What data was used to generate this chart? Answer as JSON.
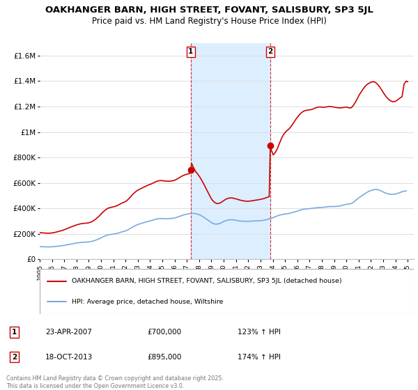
{
  "title": "OAKHANGER BARN, HIGH STREET, FOVANT, SALISBURY, SP3 5JL",
  "subtitle": "Price paid vs. HM Land Registry's House Price Index (HPI)",
  "title_fontsize": 9.5,
  "subtitle_fontsize": 8.5,
  "background_color": "#ffffff",
  "grid_color": "#dddddd",
  "hpi_line_color": "#7aaadd",
  "price_line_color": "#cc0000",
  "shaded_region_color": "#ddeeff",
  "sale1_date_num": 2007.31,
  "sale1_price": 700000,
  "sale2_date_num": 2013.8,
  "sale2_price": 895000,
  "ylim_min": 0,
  "ylim_max": 1700000,
  "xlim_min": 1995,
  "xlim_max": 2025.5,
  "yticks": [
    0,
    200000,
    400000,
    600000,
    800000,
    1000000,
    1200000,
    1400000,
    1600000
  ],
  "ytick_labels": [
    "£0",
    "£200K",
    "£400K",
    "£600K",
    "£800K",
    "£1M",
    "£1.2M",
    "£1.4M",
    "£1.6M"
  ],
  "xticks": [
    1995,
    1996,
    1997,
    1998,
    1999,
    2000,
    2001,
    2002,
    2003,
    2004,
    2005,
    2006,
    2007,
    2008,
    2009,
    2010,
    2011,
    2012,
    2013,
    2014,
    2015,
    2016,
    2017,
    2018,
    2019,
    2020,
    2021,
    2022,
    2023,
    2024,
    2025
  ],
  "legend_label_price": "OAKHANGER BARN, HIGH STREET, FOVANT, SALISBURY, SP3 5JL (detached house)",
  "legend_label_hpi": "HPI: Average price, detached house, Wiltshire",
  "footer": "Contains HM Land Registry data © Crown copyright and database right 2025.\nThis data is licensed under the Open Government Licence v3.0.",
  "hpi_data": [
    [
      1995.04,
      100000
    ],
    [
      1995.21,
      99000
    ],
    [
      1995.38,
      98500
    ],
    [
      1995.54,
      98000
    ],
    [
      1995.71,
      97500
    ],
    [
      1995.88,
      98000
    ],
    [
      1996.04,
      99000
    ],
    [
      1996.21,
      100500
    ],
    [
      1996.38,
      102000
    ],
    [
      1996.54,
      104000
    ],
    [
      1996.71,
      106000
    ],
    [
      1996.88,
      108000
    ],
    [
      1997.04,
      111000
    ],
    [
      1997.21,
      114000
    ],
    [
      1997.38,
      117000
    ],
    [
      1997.54,
      120000
    ],
    [
      1997.71,
      123000
    ],
    [
      1997.88,
      126000
    ],
    [
      1998.04,
      129000
    ],
    [
      1998.21,
      131000
    ],
    [
      1998.38,
      133000
    ],
    [
      1998.54,
      134000
    ],
    [
      1998.71,
      135000
    ],
    [
      1998.88,
      136000
    ],
    [
      1999.04,
      138000
    ],
    [
      1999.21,
      141000
    ],
    [
      1999.38,
      145000
    ],
    [
      1999.54,
      150000
    ],
    [
      1999.71,
      156000
    ],
    [
      1999.88,
      163000
    ],
    [
      2000.04,
      171000
    ],
    [
      2000.21,
      179000
    ],
    [
      2000.38,
      186000
    ],
    [
      2000.54,
      191000
    ],
    [
      2000.71,
      195000
    ],
    [
      2000.88,
      197000
    ],
    [
      2001.04,
      199000
    ],
    [
      2001.21,
      202000
    ],
    [
      2001.38,
      206000
    ],
    [
      2001.54,
      211000
    ],
    [
      2001.71,
      216000
    ],
    [
      2001.88,
      220000
    ],
    [
      2002.04,
      225000
    ],
    [
      2002.21,
      233000
    ],
    [
      2002.38,
      242000
    ],
    [
      2002.54,
      252000
    ],
    [
      2002.71,
      261000
    ],
    [
      2002.88,
      269000
    ],
    [
      2003.04,
      275000
    ],
    [
      2003.21,
      280000
    ],
    [
      2003.38,
      285000
    ],
    [
      2003.54,
      290000
    ],
    [
      2003.71,
      295000
    ],
    [
      2003.88,
      299000
    ],
    [
      2004.04,
      303000
    ],
    [
      2004.21,
      308000
    ],
    [
      2004.38,
      313000
    ],
    [
      2004.54,
      317000
    ],
    [
      2004.71,
      320000
    ],
    [
      2004.88,
      321000
    ],
    [
      2005.04,
      320000
    ],
    [
      2005.21,
      319000
    ],
    [
      2005.38,
      319000
    ],
    [
      2005.54,
      320000
    ],
    [
      2005.71,
      321000
    ],
    [
      2005.88,
      323000
    ],
    [
      2006.04,
      326000
    ],
    [
      2006.21,
      331000
    ],
    [
      2006.38,
      337000
    ],
    [
      2006.54,
      343000
    ],
    [
      2006.71,
      348000
    ],
    [
      2006.88,
      352000
    ],
    [
      2007.04,
      356000
    ],
    [
      2007.21,
      359000
    ],
    [
      2007.38,
      361000
    ],
    [
      2007.54,
      361000
    ],
    [
      2007.71,
      359000
    ],
    [
      2007.88,
      355000
    ],
    [
      2008.04,
      349000
    ],
    [
      2008.21,
      341000
    ],
    [
      2008.38,
      331000
    ],
    [
      2008.54,
      320000
    ],
    [
      2008.71,
      308000
    ],
    [
      2008.88,
      296000
    ],
    [
      2009.04,
      286000
    ],
    [
      2009.21,
      279000
    ],
    [
      2009.38,
      276000
    ],
    [
      2009.54,
      278000
    ],
    [
      2009.71,
      283000
    ],
    [
      2009.88,
      291000
    ],
    [
      2010.04,
      299000
    ],
    [
      2010.21,
      305000
    ],
    [
      2010.38,
      309000
    ],
    [
      2010.54,
      311000
    ],
    [
      2010.71,
      311000
    ],
    [
      2010.88,
      309000
    ],
    [
      2011.04,
      306000
    ],
    [
      2011.21,
      303000
    ],
    [
      2011.38,
      301000
    ],
    [
      2011.54,
      300000
    ],
    [
      2011.71,
      299000
    ],
    [
      2011.88,
      299000
    ],
    [
      2012.04,
      299000
    ],
    [
      2012.21,
      300000
    ],
    [
      2012.38,
      301000
    ],
    [
      2012.54,
      302000
    ],
    [
      2012.71,
      302000
    ],
    [
      2012.88,
      303000
    ],
    [
      2013.04,
      304000
    ],
    [
      2013.21,
      306000
    ],
    [
      2013.38,
      309000
    ],
    [
      2013.54,
      313000
    ],
    [
      2013.71,
      317000
    ],
    [
      2013.88,
      322000
    ],
    [
      2014.04,
      328000
    ],
    [
      2014.21,
      335000
    ],
    [
      2014.38,
      342000
    ],
    [
      2014.54,
      347000
    ],
    [
      2014.71,
      351000
    ],
    [
      2014.88,
      354000
    ],
    [
      2015.04,
      356000
    ],
    [
      2015.21,
      359000
    ],
    [
      2015.38,
      362000
    ],
    [
      2015.54,
      366000
    ],
    [
      2015.71,
      370000
    ],
    [
      2015.88,
      375000
    ],
    [
      2016.04,
      380000
    ],
    [
      2016.21,
      386000
    ],
    [
      2016.38,
      391000
    ],
    [
      2016.54,
      394000
    ],
    [
      2016.71,
      396000
    ],
    [
      2016.88,
      397000
    ],
    [
      2017.04,
      399000
    ],
    [
      2017.21,
      401000
    ],
    [
      2017.38,
      403000
    ],
    [
      2017.54,
      405000
    ],
    [
      2017.71,
      406000
    ],
    [
      2017.88,
      407000
    ],
    [
      2018.04,
      408000
    ],
    [
      2018.21,
      410000
    ],
    [
      2018.38,
      412000
    ],
    [
      2018.54,
      414000
    ],
    [
      2018.71,
      415000
    ],
    [
      2018.88,
      415000
    ],
    [
      2019.04,
      415000
    ],
    [
      2019.21,
      416000
    ],
    [
      2019.38,
      418000
    ],
    [
      2019.54,
      421000
    ],
    [
      2019.71,
      425000
    ],
    [
      2019.88,
      430000
    ],
    [
      2020.04,
      433000
    ],
    [
      2020.21,
      434000
    ],
    [
      2020.38,
      438000
    ],
    [
      2020.54,
      446000
    ],
    [
      2020.71,
      459000
    ],
    [
      2020.88,
      473000
    ],
    [
      2021.04,
      485000
    ],
    [
      2021.21,
      496000
    ],
    [
      2021.38,
      507000
    ],
    [
      2021.54,
      518000
    ],
    [
      2021.71,
      528000
    ],
    [
      2021.88,
      536000
    ],
    [
      2022.04,
      542000
    ],
    [
      2022.21,
      547000
    ],
    [
      2022.38,
      549000
    ],
    [
      2022.54,
      548000
    ],
    [
      2022.71,
      543000
    ],
    [
      2022.88,
      535000
    ],
    [
      2023.04,
      527000
    ],
    [
      2023.21,
      520000
    ],
    [
      2023.38,
      515000
    ],
    [
      2023.54,
      512000
    ],
    [
      2023.71,
      511000
    ],
    [
      2023.88,
      512000
    ],
    [
      2024.04,
      514000
    ],
    [
      2024.21,
      519000
    ],
    [
      2024.38,
      525000
    ],
    [
      2024.54,
      531000
    ],
    [
      2024.71,
      535000
    ],
    [
      2024.88,
      538000
    ]
  ],
  "price_data": [
    [
      1995.04,
      210000
    ],
    [
      1995.21,
      208000
    ],
    [
      1995.38,
      207000
    ],
    [
      1995.54,
      206000
    ],
    [
      1995.71,
      205000
    ],
    [
      1995.88,
      206000
    ],
    [
      1996.04,
      208000
    ],
    [
      1996.21,
      211000
    ],
    [
      1996.38,
      215000
    ],
    [
      1996.54,
      219000
    ],
    [
      1996.71,
      224000
    ],
    [
      1996.88,
      228000
    ],
    [
      1997.04,
      234000
    ],
    [
      1997.21,
      241000
    ],
    [
      1997.38,
      248000
    ],
    [
      1997.54,
      254000
    ],
    [
      1997.71,
      260000
    ],
    [
      1997.88,
      266000
    ],
    [
      1998.04,
      272000
    ],
    [
      1998.21,
      276000
    ],
    [
      1998.38,
      280000
    ],
    [
      1998.54,
      282000
    ],
    [
      1998.71,
      284000
    ],
    [
      1998.88,
      285000
    ],
    [
      1999.04,
      288000
    ],
    [
      1999.21,
      294000
    ],
    [
      1999.38,
      303000
    ],
    [
      1999.54,
      314000
    ],
    [
      1999.71,
      328000
    ],
    [
      1999.88,
      343000
    ],
    [
      2000.04,
      360000
    ],
    [
      2000.21,
      376000
    ],
    [
      2000.38,
      390000
    ],
    [
      2000.54,
      400000
    ],
    [
      2000.71,
      406000
    ],
    [
      2000.88,
      410000
    ],
    [
      2001.04,
      413000
    ],
    [
      2001.21,
      418000
    ],
    [
      2001.38,
      425000
    ],
    [
      2001.54,
      434000
    ],
    [
      2001.71,
      442000
    ],
    [
      2001.88,
      449000
    ],
    [
      2002.04,
      456000
    ],
    [
      2002.21,
      471000
    ],
    [
      2002.38,
      488000
    ],
    [
      2002.54,
      506000
    ],
    [
      2002.71,
      522000
    ],
    [
      2002.88,
      536000
    ],
    [
      2003.04,
      546000
    ],
    [
      2003.21,
      554000
    ],
    [
      2003.38,
      562000
    ],
    [
      2003.54,
      570000
    ],
    [
      2003.71,
      578000
    ],
    [
      2003.88,
      585000
    ],
    [
      2004.04,
      590000
    ],
    [
      2004.21,
      598000
    ],
    [
      2004.38,
      606000
    ],
    [
      2004.54,
      613000
    ],
    [
      2004.71,
      617000
    ],
    [
      2004.88,
      619000
    ],
    [
      2005.04,
      617000
    ],
    [
      2005.21,
      615000
    ],
    [
      2005.38,
      614000
    ],
    [
      2005.54,
      614000
    ],
    [
      2005.71,
      615000
    ],
    [
      2005.88,
      618000
    ],
    [
      2006.04,
      623000
    ],
    [
      2006.21,
      631000
    ],
    [
      2006.38,
      641000
    ],
    [
      2006.54,
      651000
    ],
    [
      2006.71,
      659000
    ],
    [
      2006.88,
      665000
    ],
    [
      2007.04,
      670000
    ],
    [
      2007.21,
      673000
    ],
    [
      2007.31,
      700000
    ],
    [
      2007.38,
      755000
    ],
    [
      2007.54,
      720000
    ],
    [
      2007.71,
      690000
    ],
    [
      2007.88,
      670000
    ],
    [
      2008.04,
      648000
    ],
    [
      2008.21,
      621000
    ],
    [
      2008.38,
      591000
    ],
    [
      2008.54,
      560000
    ],
    [
      2008.71,
      528000
    ],
    [
      2008.88,
      496000
    ],
    [
      2009.04,
      469000
    ],
    [
      2009.21,
      451000
    ],
    [
      2009.38,
      440000
    ],
    [
      2009.54,
      438000
    ],
    [
      2009.71,
      443000
    ],
    [
      2009.88,
      453000
    ],
    [
      2010.04,
      464000
    ],
    [
      2010.21,
      474000
    ],
    [
      2010.38,
      480000
    ],
    [
      2010.54,
      483000
    ],
    [
      2010.71,
      482000
    ],
    [
      2010.88,
      478000
    ],
    [
      2011.04,
      474000
    ],
    [
      2011.21,
      469000
    ],
    [
      2011.38,
      464000
    ],
    [
      2011.54,
      461000
    ],
    [
      2011.71,
      458000
    ],
    [
      2011.88,
      456000
    ],
    [
      2012.04,
      457000
    ],
    [
      2012.21,
      459000
    ],
    [
      2012.38,
      461000
    ],
    [
      2012.54,
      464000
    ],
    [
      2012.71,
      466000
    ],
    [
      2012.88,
      469000
    ],
    [
      2013.04,
      472000
    ],
    [
      2013.21,
      476000
    ],
    [
      2013.38,
      481000
    ],
    [
      2013.54,
      487000
    ],
    [
      2013.71,
      493000
    ],
    [
      2013.8,
      895000
    ],
    [
      2013.88,
      860000
    ],
    [
      2014.04,
      820000
    ],
    [
      2014.21,
      840000
    ],
    [
      2014.38,
      870000
    ],
    [
      2014.54,
      910000
    ],
    [
      2014.71,
      950000
    ],
    [
      2014.88,
      980000
    ],
    [
      2015.04,
      1000000
    ],
    [
      2015.21,
      1015000
    ],
    [
      2015.38,
      1030000
    ],
    [
      2015.54,
      1050000
    ],
    [
      2015.71,
      1075000
    ],
    [
      2015.88,
      1100000
    ],
    [
      2016.04,
      1120000
    ],
    [
      2016.21,
      1140000
    ],
    [
      2016.38,
      1155000
    ],
    [
      2016.54,
      1165000
    ],
    [
      2016.71,
      1170000
    ],
    [
      2016.88,
      1173000
    ],
    [
      2017.04,
      1175000
    ],
    [
      2017.21,
      1178000
    ],
    [
      2017.38,
      1185000
    ],
    [
      2017.54,
      1192000
    ],
    [
      2017.71,
      1196000
    ],
    [
      2017.88,
      1197000
    ],
    [
      2018.04,
      1195000
    ],
    [
      2018.21,
      1195000
    ],
    [
      2018.38,
      1197000
    ],
    [
      2018.54,
      1200000
    ],
    [
      2018.71,
      1200000
    ],
    [
      2018.88,
      1198000
    ],
    [
      2019.04,
      1195000
    ],
    [
      2019.21,
      1192000
    ],
    [
      2019.38,
      1190000
    ],
    [
      2019.54,
      1190000
    ],
    [
      2019.71,
      1192000
    ],
    [
      2019.88,
      1195000
    ],
    [
      2020.04,
      1195000
    ],
    [
      2020.21,
      1190000
    ],
    [
      2020.38,
      1190000
    ],
    [
      2020.54,
      1205000
    ],
    [
      2020.71,
      1230000
    ],
    [
      2020.88,
      1260000
    ],
    [
      2021.04,
      1290000
    ],
    [
      2021.21,
      1315000
    ],
    [
      2021.38,
      1340000
    ],
    [
      2021.54,
      1360000
    ],
    [
      2021.71,
      1375000
    ],
    [
      2021.88,
      1385000
    ],
    [
      2022.04,
      1393000
    ],
    [
      2022.21,
      1395000
    ],
    [
      2022.38,
      1390000
    ],
    [
      2022.54,
      1375000
    ],
    [
      2022.71,
      1355000
    ],
    [
      2022.88,
      1330000
    ],
    [
      2023.04,
      1305000
    ],
    [
      2023.21,
      1282000
    ],
    [
      2023.38,
      1263000
    ],
    [
      2023.54,
      1249000
    ],
    [
      2023.71,
      1240000
    ],
    [
      2023.88,
      1238000
    ],
    [
      2024.04,
      1243000
    ],
    [
      2024.21,
      1255000
    ],
    [
      2024.38,
      1268000
    ],
    [
      2024.54,
      1278000
    ],
    [
      2024.71,
      1378000
    ],
    [
      2024.88,
      1400000
    ],
    [
      2025.0,
      1395000
    ]
  ]
}
